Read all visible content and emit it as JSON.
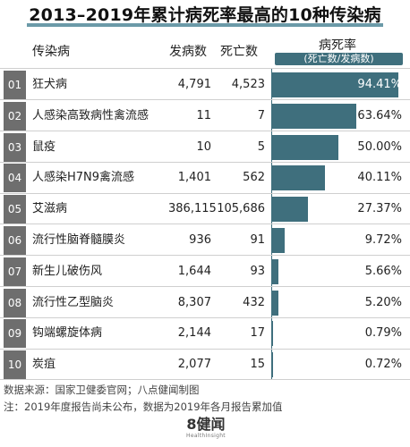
{
  "title": "2013–2019年累计病死率最高的10种传染病",
  "headers": {
    "disease": "传染病",
    "cases": "发病数",
    "deaths": "死亡数",
    "rate": "病死率",
    "rate_sub": "(死亡数/发病数)"
  },
  "chart_data": {
    "type": "bar",
    "title": "2013–2019年累计病死率最高的10种传染病",
    "xlabel": "",
    "ylabel": "病死率",
    "xlim": [
      0,
      100
    ],
    "rows": [
      {
        "rank": "01",
        "name": "狂犬病",
        "cases": "4,791",
        "deaths": "4,523",
        "rate": 94.41,
        "rate_label": "94.41%"
      },
      {
        "rank": "02",
        "name": "人感染高致病性禽流感",
        "cases": "11",
        "deaths": "7",
        "rate": 63.64,
        "rate_label": "63.64%"
      },
      {
        "rank": "03",
        "name": "鼠疫",
        "cases": "10",
        "deaths": "5",
        "rate": 50.0,
        "rate_label": "50.00%"
      },
      {
        "rank": "04",
        "name": "人感染H7N9禽流感",
        "cases": "1,401",
        "deaths": "562",
        "rate": 40.11,
        "rate_label": "40.11%"
      },
      {
        "rank": "05",
        "name": "艾滋病",
        "cases": "386,115",
        "deaths": "105,686",
        "rate": 27.37,
        "rate_label": "27.37%"
      },
      {
        "rank": "06",
        "name": "流行性脑脊髓膜炎",
        "cases": "936",
        "deaths": "91",
        "rate": 9.72,
        "rate_label": "9.72%"
      },
      {
        "rank": "07",
        "name": "新生儿破伤风",
        "cases": "1,644",
        "deaths": "93",
        "rate": 5.66,
        "rate_label": "5.66%"
      },
      {
        "rank": "08",
        "name": "流行性乙型脑炎",
        "cases": "8,307",
        "deaths": "432",
        "rate": 5.2,
        "rate_label": "5.20%"
      },
      {
        "rank": "09",
        "name": "钩端螺旋体病",
        "cases": "2,144",
        "deaths": "17",
        "rate": 0.79,
        "rate_label": "0.79%"
      },
      {
        "rank": "10",
        "name": "炭疽",
        "cases": "2,077",
        "deaths": "15",
        "rate": 0.72,
        "rate_label": "0.72%"
      }
    ],
    "colors": {
      "bar": "#3f6f7d",
      "rank": "#6e6e6e"
    }
  },
  "notes": {
    "source": "数据来源：国家卫健委官网；八点健闻制图",
    "footnote": "注：2019年度报告尚未公布，数据为2019年各月报告累加值"
  },
  "logo": {
    "main": "8健闻",
    "sub": "HealthInsight"
  }
}
